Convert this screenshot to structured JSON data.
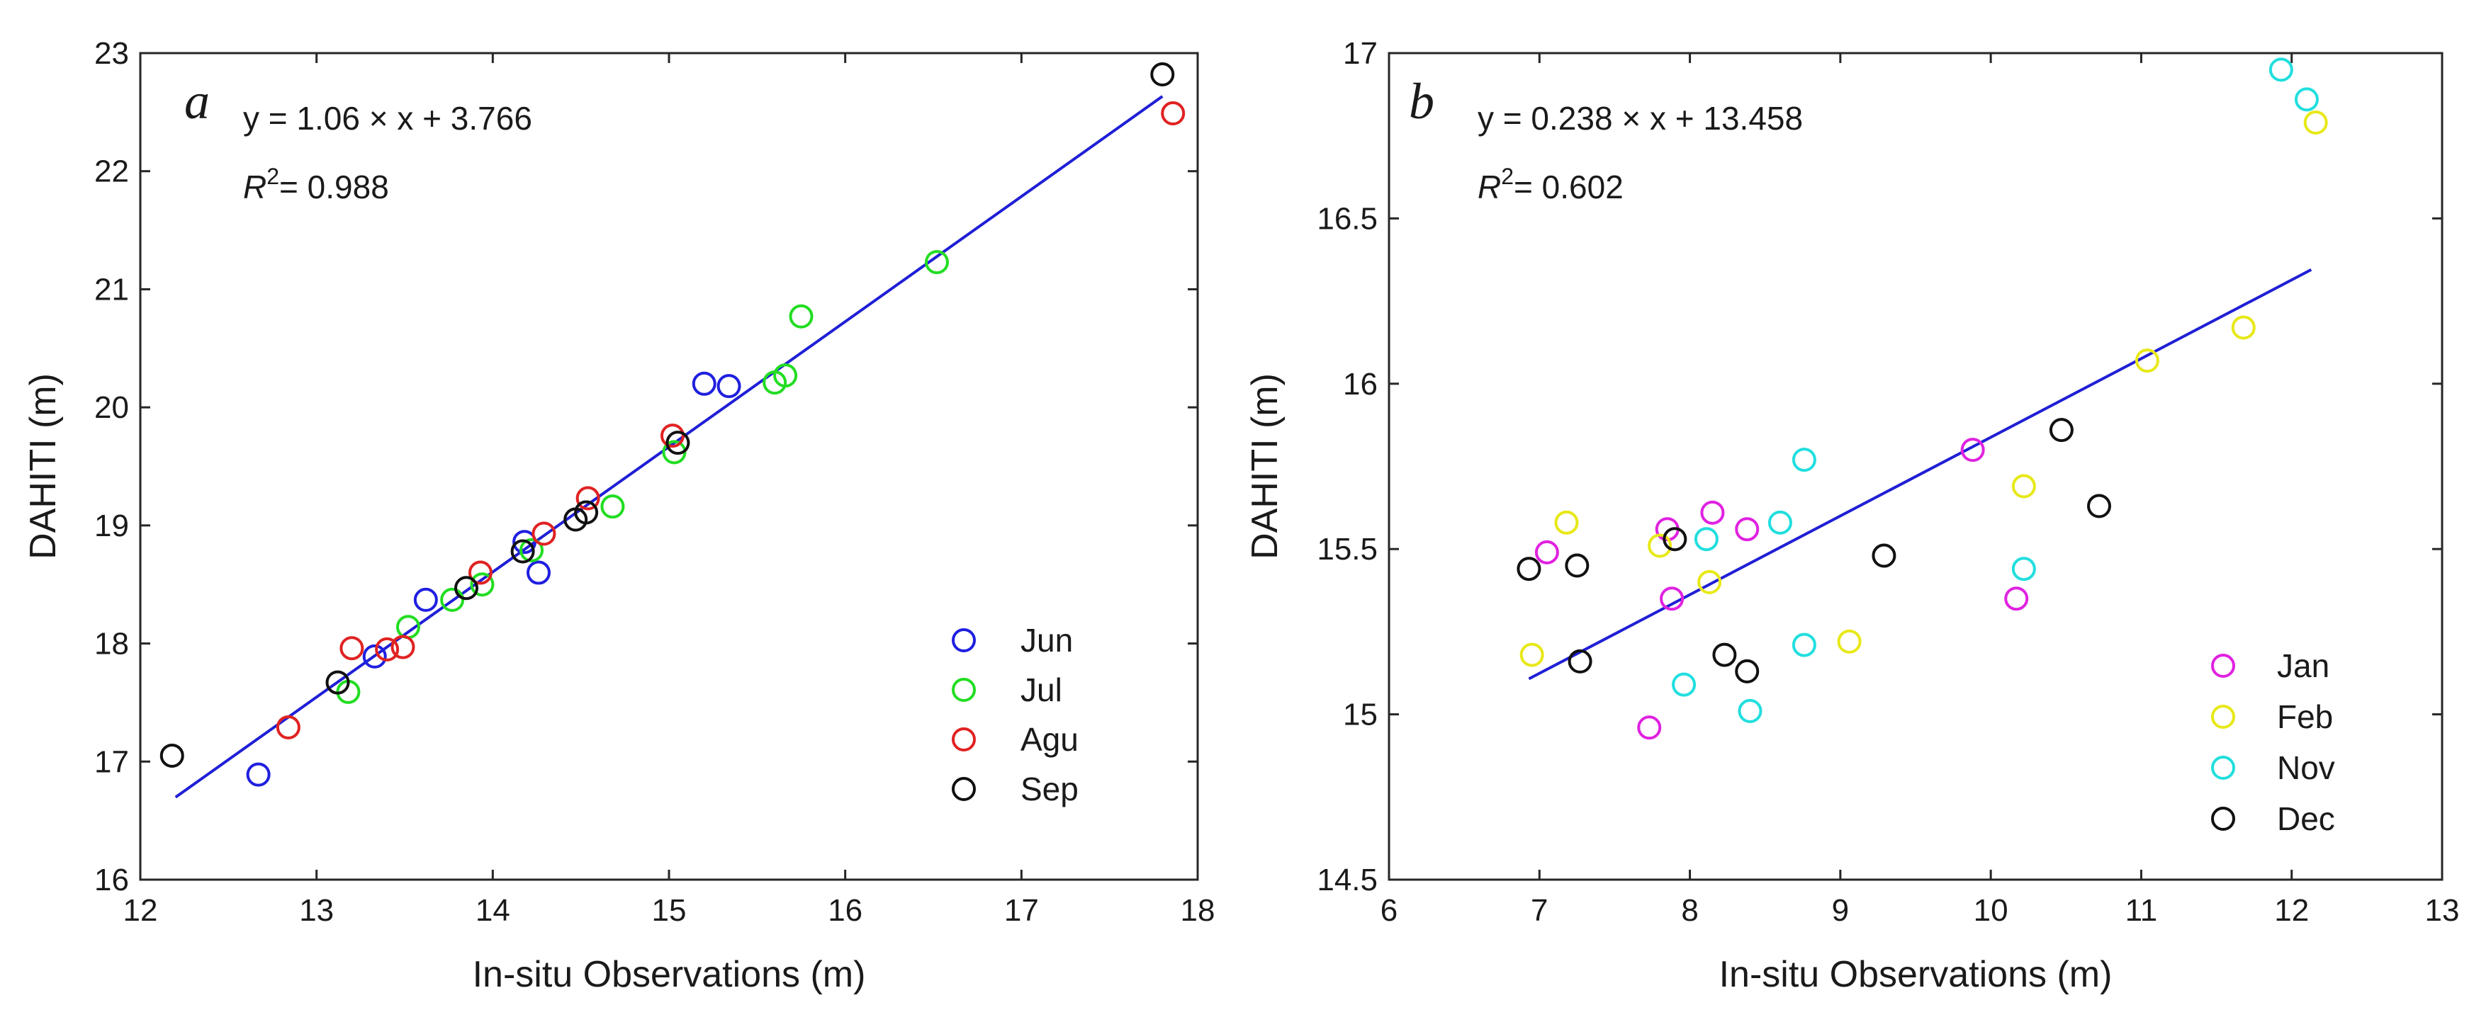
{
  "chart_data": [
    {
      "type": "scatter",
      "panel": "a",
      "xlabel": "In-situ Observations (m)",
      "ylabel": "DAHITI (m)",
      "xlim": [
        12,
        18
      ],
      "ylim": [
        16,
        23
      ],
      "xticks": [
        12,
        13,
        14,
        15,
        16,
        17,
        18
      ],
      "xtick_labels": [
        "12",
        "13",
        "14",
        "15",
        "16",
        "17",
        "18"
      ],
      "yticks": [
        16,
        17,
        18,
        19,
        20,
        21,
        22,
        23
      ],
      "ytick_labels": [
        "16",
        "17",
        "18",
        "19",
        "20",
        "21",
        "22",
        "23"
      ],
      "equation": "y = 1.06 × x + 3.766",
      "r2_label": "R",
      "r2_sup": "2",
      "r2_value": "= 0.988",
      "fit": {
        "slope": 1.06,
        "intercept": 3.766,
        "x_range": [
          12.2,
          17.8
        ],
        "color": "#1f1fd6"
      },
      "legend_position": "bottom-right",
      "series": [
        {
          "name": "Jun",
          "color": "#1f1fe0",
          "points": [
            [
              12.67,
              16.89
            ],
            [
              13.33,
              17.89
            ],
            [
              13.62,
              18.37
            ],
            [
              14.18,
              18.86
            ],
            [
              14.26,
              18.6
            ],
            [
              15.2,
              20.2
            ],
            [
              15.34,
              20.18
            ]
          ]
        },
        {
          "name": "Jul",
          "color": "#22dd22",
          "points": [
            [
              13.18,
              17.59
            ],
            [
              13.52,
              18.14
            ],
            [
              13.77,
              18.37
            ],
            [
              13.94,
              18.5
            ],
            [
              14.22,
              18.79
            ],
            [
              14.68,
              19.16
            ],
            [
              15.03,
              19.62
            ],
            [
              15.6,
              20.21
            ],
            [
              15.66,
              20.27
            ],
            [
              15.75,
              20.77
            ],
            [
              16.52,
              21.23
            ]
          ]
        },
        {
          "name": "Agu",
          "color": "#e02222",
          "points": [
            [
              12.84,
              17.29
            ],
            [
              13.2,
              17.96
            ],
            [
              13.4,
              17.95
            ],
            [
              13.49,
              17.97
            ],
            [
              13.93,
              18.6
            ],
            [
              14.29,
              18.93
            ],
            [
              14.54,
              19.23
            ],
            [
              15.02,
              19.76
            ],
            [
              17.86,
              22.49
            ]
          ]
        },
        {
          "name": "Sep",
          "color": "#111111",
          "points": [
            [
              12.18,
              17.05
            ],
            [
              13.12,
              17.67
            ],
            [
              13.85,
              18.47
            ],
            [
              14.17,
              18.78
            ],
            [
              14.47,
              19.05
            ],
            [
              14.53,
              19.11
            ],
            [
              15.05,
              19.7
            ],
            [
              17.8,
              22.82
            ]
          ]
        }
      ]
    },
    {
      "type": "scatter",
      "panel": "b",
      "xlabel": "In-situ Observations (m)",
      "ylabel": "DAHITI (m)",
      "xlim": [
        6,
        13
      ],
      "ylim": [
        14.5,
        17
      ],
      "xticks": [
        6,
        7,
        8,
        9,
        10,
        11,
        12,
        13
      ],
      "xtick_labels": [
        "6",
        "7",
        "8",
        "9",
        "10",
        "11",
        "12",
        "13"
      ],
      "yticks": [
        14.5,
        15,
        15.5,
        16,
        16.5,
        17
      ],
      "ytick_labels": [
        "14.5",
        "15",
        "15.5",
        "16",
        "16.5",
        "17"
      ],
      "equation": "y = 0.238 × x + 13.458",
      "r2_label": "R",
      "r2_sup": "2",
      "r2_value": "= 0.602",
      "fit": {
        "slope": 0.238,
        "intercept": 13.458,
        "x_range": [
          6.93,
          12.13
        ],
        "color": "#1f1fd6"
      },
      "legend_position": "bottom-right",
      "series": [
        {
          "name": "Jan",
          "color": "#e022e0",
          "points": [
            [
              7.05,
              15.49
            ],
            [
              7.73,
              14.96
            ],
            [
              7.85,
              15.56
            ],
            [
              7.88,
              15.35
            ],
            [
              8.15,
              15.61
            ],
            [
              8.38,
              15.56
            ],
            [
              9.88,
              15.8
            ],
            [
              10.17,
              15.35
            ]
          ]
        },
        {
          "name": "Feb",
          "color": "#e8e818",
          "points": [
            [
              6.95,
              15.18
            ],
            [
              7.18,
              15.58
            ],
            [
              7.8,
              15.51
            ],
            [
              8.13,
              15.4
            ],
            [
              9.06,
              15.22
            ],
            [
              10.22,
              15.69
            ],
            [
              11.04,
              16.07
            ],
            [
              11.68,
              16.17
            ],
            [
              12.16,
              16.79
            ]
          ]
        },
        {
          "name": "Nov",
          "color": "#22dede",
          "points": [
            [
              7.96,
              15.09
            ],
            [
              8.11,
              15.53
            ],
            [
              8.4,
              15.01
            ],
            [
              8.6,
              15.58
            ],
            [
              8.76,
              15.77
            ],
            [
              8.76,
              15.21
            ],
            [
              10.22,
              15.44
            ],
            [
              11.93,
              16.95
            ],
            [
              12.1,
              16.86
            ]
          ]
        },
        {
          "name": "Dec",
          "color": "#111111",
          "points": [
            [
              6.93,
              15.44
            ],
            [
              7.25,
              15.45
            ],
            [
              7.27,
              15.16
            ],
            [
              7.9,
              15.53
            ],
            [
              8.23,
              15.18
            ],
            [
              8.38,
              15.13
            ],
            [
              9.29,
              15.48
            ],
            [
              10.47,
              15.86
            ],
            [
              10.72,
              15.63
            ]
          ]
        }
      ]
    }
  ]
}
